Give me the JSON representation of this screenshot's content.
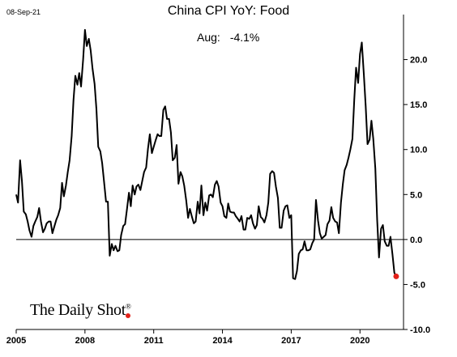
{
  "header": {
    "date": "08-Sep-21"
  },
  "chart_data": {
    "type": "line",
    "title": "China CPI YoY: Food",
    "annotation": {
      "label": "Aug:",
      "value": "-4.1%"
    },
    "xlabel": "",
    "ylabel": "",
    "ylim": [
      -10,
      25
    ],
    "xlim": [
      2005.0,
      2021.9
    ],
    "y_ticks": [
      20,
      15,
      10,
      5,
      0,
      -5,
      -10
    ],
    "y_tick_labels": [
      "20.0",
      "15.0",
      "10.0",
      "5.0",
      "0.0",
      "-5.0",
      "-10.0"
    ],
    "x_ticks": [
      2005,
      2008,
      2011,
      2014,
      2017,
      2020
    ],
    "x_tick_labels": [
      "2005",
      "2008",
      "2011",
      "2014",
      "2017",
      "2020"
    ],
    "zero_line": true,
    "grid": false,
    "line_color": "#000000",
    "marker_color": "#e32119",
    "last_point": {
      "x": 2021.58,
      "y": -4.1
    },
    "series": [
      {
        "values": [
          {
            "x": 2005.0,
            "y": 5.0
          },
          {
            "x": 2005.08,
            "y": 4.1
          },
          {
            "x": 2005.17,
            "y": 8.8
          },
          {
            "x": 2005.25,
            "y": 6.5
          },
          {
            "x": 2005.33,
            "y": 3.1
          },
          {
            "x": 2005.42,
            "y": 2.8
          },
          {
            "x": 2005.5,
            "y": 2.0
          },
          {
            "x": 2005.58,
            "y": 1.0
          },
          {
            "x": 2005.67,
            "y": 0.3
          },
          {
            "x": 2005.75,
            "y": 1.5
          },
          {
            "x": 2005.83,
            "y": 2.0
          },
          {
            "x": 2005.92,
            "y": 2.5
          },
          {
            "x": 2006.0,
            "y": 3.5
          },
          {
            "x": 2006.08,
            "y": 2.0
          },
          {
            "x": 2006.17,
            "y": 0.8
          },
          {
            "x": 2006.25,
            "y": 1.2
          },
          {
            "x": 2006.33,
            "y": 1.8
          },
          {
            "x": 2006.42,
            "y": 2.0
          },
          {
            "x": 2006.5,
            "y": 2.0
          },
          {
            "x": 2006.58,
            "y": 0.7
          },
          {
            "x": 2006.67,
            "y": 1.5
          },
          {
            "x": 2006.75,
            "y": 2.2
          },
          {
            "x": 2006.83,
            "y": 2.7
          },
          {
            "x": 2006.92,
            "y": 3.5
          },
          {
            "x": 2007.0,
            "y": 6.3
          },
          {
            "x": 2007.08,
            "y": 4.8
          },
          {
            "x": 2007.17,
            "y": 6.0
          },
          {
            "x": 2007.25,
            "y": 7.5
          },
          {
            "x": 2007.33,
            "y": 8.8
          },
          {
            "x": 2007.42,
            "y": 11.5
          },
          {
            "x": 2007.5,
            "y": 15.5
          },
          {
            "x": 2007.58,
            "y": 18.2
          },
          {
            "x": 2007.67,
            "y": 17.2
          },
          {
            "x": 2007.75,
            "y": 18.5
          },
          {
            "x": 2007.83,
            "y": 17.0
          },
          {
            "x": 2007.92,
            "y": 20.0
          },
          {
            "x": 2008.0,
            "y": 23.3
          },
          {
            "x": 2008.08,
            "y": 21.5
          },
          {
            "x": 2008.17,
            "y": 22.3
          },
          {
            "x": 2008.25,
            "y": 21.0
          },
          {
            "x": 2008.33,
            "y": 19.0
          },
          {
            "x": 2008.42,
            "y": 17.3
          },
          {
            "x": 2008.5,
            "y": 14.5
          },
          {
            "x": 2008.58,
            "y": 10.3
          },
          {
            "x": 2008.67,
            "y": 9.8
          },
          {
            "x": 2008.75,
            "y": 8.5
          },
          {
            "x": 2008.83,
            "y": 6.5
          },
          {
            "x": 2008.92,
            "y": 4.2
          },
          {
            "x": 2009.0,
            "y": 4.2
          },
          {
            "x": 2009.08,
            "y": -1.8
          },
          {
            "x": 2009.17,
            "y": -0.5
          },
          {
            "x": 2009.25,
            "y": -1.2
          },
          {
            "x": 2009.33,
            "y": -0.7
          },
          {
            "x": 2009.42,
            "y": -1.3
          },
          {
            "x": 2009.5,
            "y": -1.2
          },
          {
            "x": 2009.58,
            "y": 0.5
          },
          {
            "x": 2009.67,
            "y": 1.5
          },
          {
            "x": 2009.75,
            "y": 1.7
          },
          {
            "x": 2009.83,
            "y": 3.3
          },
          {
            "x": 2009.92,
            "y": 5.2
          },
          {
            "x": 2010.0,
            "y": 3.7
          },
          {
            "x": 2010.08,
            "y": 6.0
          },
          {
            "x": 2010.17,
            "y": 5.0
          },
          {
            "x": 2010.25,
            "y": 5.9
          },
          {
            "x": 2010.33,
            "y": 6.1
          },
          {
            "x": 2010.42,
            "y": 5.5
          },
          {
            "x": 2010.5,
            "y": 6.5
          },
          {
            "x": 2010.58,
            "y": 7.5
          },
          {
            "x": 2010.67,
            "y": 8.0
          },
          {
            "x": 2010.75,
            "y": 10.1
          },
          {
            "x": 2010.83,
            "y": 11.7
          },
          {
            "x": 2010.92,
            "y": 9.6
          },
          {
            "x": 2011.0,
            "y": 10.3
          },
          {
            "x": 2011.08,
            "y": 11.0
          },
          {
            "x": 2011.17,
            "y": 11.7
          },
          {
            "x": 2011.25,
            "y": 11.5
          },
          {
            "x": 2011.33,
            "y": 11.5
          },
          {
            "x": 2011.42,
            "y": 14.4
          },
          {
            "x": 2011.5,
            "y": 14.8
          },
          {
            "x": 2011.58,
            "y": 13.4
          },
          {
            "x": 2011.67,
            "y": 13.4
          },
          {
            "x": 2011.75,
            "y": 11.9
          },
          {
            "x": 2011.83,
            "y": 8.8
          },
          {
            "x": 2011.92,
            "y": 9.1
          },
          {
            "x": 2012.0,
            "y": 10.5
          },
          {
            "x": 2012.08,
            "y": 6.2
          },
          {
            "x": 2012.17,
            "y": 7.5
          },
          {
            "x": 2012.25,
            "y": 7.0
          },
          {
            "x": 2012.33,
            "y": 6.0
          },
          {
            "x": 2012.42,
            "y": 4.3
          },
          {
            "x": 2012.5,
            "y": 2.4
          },
          {
            "x": 2012.58,
            "y": 3.4
          },
          {
            "x": 2012.67,
            "y": 2.5
          },
          {
            "x": 2012.75,
            "y": 1.8
          },
          {
            "x": 2012.83,
            "y": 2.0
          },
          {
            "x": 2012.92,
            "y": 4.2
          },
          {
            "x": 2013.0,
            "y": 2.9
          },
          {
            "x": 2013.08,
            "y": 6.0
          },
          {
            "x": 2013.17,
            "y": 2.7
          },
          {
            "x": 2013.25,
            "y": 4.1
          },
          {
            "x": 2013.33,
            "y": 3.2
          },
          {
            "x": 2013.42,
            "y": 4.9
          },
          {
            "x": 2013.5,
            "y": 5.0
          },
          {
            "x": 2013.58,
            "y": 4.7
          },
          {
            "x": 2013.67,
            "y": 6.1
          },
          {
            "x": 2013.75,
            "y": 6.5
          },
          {
            "x": 2013.83,
            "y": 5.9
          },
          {
            "x": 2013.92,
            "y": 4.1
          },
          {
            "x": 2014.0,
            "y": 3.7
          },
          {
            "x": 2014.08,
            "y": 2.6
          },
          {
            "x": 2014.17,
            "y": 2.4
          },
          {
            "x": 2014.25,
            "y": 4.0
          },
          {
            "x": 2014.33,
            "y": 3.1
          },
          {
            "x": 2014.42,
            "y": 3.0
          },
          {
            "x": 2014.5,
            "y": 3.0
          },
          {
            "x": 2014.58,
            "y": 2.6
          },
          {
            "x": 2014.67,
            "y": 2.3
          },
          {
            "x": 2014.75,
            "y": 2.0
          },
          {
            "x": 2014.83,
            "y": 2.6
          },
          {
            "x": 2014.92,
            "y": 1.1
          },
          {
            "x": 2015.0,
            "y": 1.1
          },
          {
            "x": 2015.08,
            "y": 2.4
          },
          {
            "x": 2015.17,
            "y": 2.3
          },
          {
            "x": 2015.25,
            "y": 2.7
          },
          {
            "x": 2015.33,
            "y": 1.8
          },
          {
            "x": 2015.42,
            "y": 1.2
          },
          {
            "x": 2015.5,
            "y": 1.6
          },
          {
            "x": 2015.58,
            "y": 3.7
          },
          {
            "x": 2015.67,
            "y": 2.5
          },
          {
            "x": 2015.75,
            "y": 2.3
          },
          {
            "x": 2015.83,
            "y": 1.9
          },
          {
            "x": 2015.92,
            "y": 2.7
          },
          {
            "x": 2016.0,
            "y": 4.1
          },
          {
            "x": 2016.08,
            "y": 7.3
          },
          {
            "x": 2016.17,
            "y": 7.6
          },
          {
            "x": 2016.25,
            "y": 7.4
          },
          {
            "x": 2016.33,
            "y": 5.9
          },
          {
            "x": 2016.42,
            "y": 4.6
          },
          {
            "x": 2016.5,
            "y": 1.3
          },
          {
            "x": 2016.58,
            "y": 1.3
          },
          {
            "x": 2016.67,
            "y": 3.2
          },
          {
            "x": 2016.75,
            "y": 3.7
          },
          {
            "x": 2016.83,
            "y": 3.8
          },
          {
            "x": 2016.92,
            "y": 2.4
          },
          {
            "x": 2017.0,
            "y": 2.7
          },
          {
            "x": 2017.08,
            "y": -4.3
          },
          {
            "x": 2017.17,
            "y": -4.4
          },
          {
            "x": 2017.25,
            "y": -3.5
          },
          {
            "x": 2017.33,
            "y": -1.6
          },
          {
            "x": 2017.42,
            "y": -1.2
          },
          {
            "x": 2017.5,
            "y": -1.1
          },
          {
            "x": 2017.58,
            "y": -0.2
          },
          {
            "x": 2017.67,
            "y": -1.2
          },
          {
            "x": 2017.75,
            "y": -1.2
          },
          {
            "x": 2017.83,
            "y": -1.1
          },
          {
            "x": 2017.92,
            "y": -0.4
          },
          {
            "x": 2018.0,
            "y": 0.0
          },
          {
            "x": 2018.08,
            "y": 4.4
          },
          {
            "x": 2018.17,
            "y": 2.1
          },
          {
            "x": 2018.25,
            "y": 0.7
          },
          {
            "x": 2018.33,
            "y": 0.1
          },
          {
            "x": 2018.42,
            "y": 0.3
          },
          {
            "x": 2018.5,
            "y": 0.5
          },
          {
            "x": 2018.58,
            "y": 1.7
          },
          {
            "x": 2018.67,
            "y": 2.1
          },
          {
            "x": 2018.75,
            "y": 3.6
          },
          {
            "x": 2018.83,
            "y": 2.4
          },
          {
            "x": 2018.92,
            "y": 2.0
          },
          {
            "x": 2019.0,
            "y": 1.9
          },
          {
            "x": 2019.08,
            "y": 0.7
          },
          {
            "x": 2019.17,
            "y": 4.1
          },
          {
            "x": 2019.25,
            "y": 6.1
          },
          {
            "x": 2019.33,
            "y": 7.7
          },
          {
            "x": 2019.42,
            "y": 8.3
          },
          {
            "x": 2019.5,
            "y": 9.1
          },
          {
            "x": 2019.58,
            "y": 10.0
          },
          {
            "x": 2019.67,
            "y": 11.2
          },
          {
            "x": 2019.75,
            "y": 15.5
          },
          {
            "x": 2019.83,
            "y": 19.1
          },
          {
            "x": 2019.92,
            "y": 17.4
          },
          {
            "x": 2020.0,
            "y": 20.6
          },
          {
            "x": 2020.08,
            "y": 21.9
          },
          {
            "x": 2020.17,
            "y": 18.3
          },
          {
            "x": 2020.25,
            "y": 14.8
          },
          {
            "x": 2020.33,
            "y": 10.6
          },
          {
            "x": 2020.42,
            "y": 11.1
          },
          {
            "x": 2020.5,
            "y": 13.2
          },
          {
            "x": 2020.58,
            "y": 11.2
          },
          {
            "x": 2020.67,
            "y": 7.9
          },
          {
            "x": 2020.75,
            "y": 2.2
          },
          {
            "x": 2020.83,
            "y": -2.0
          },
          {
            "x": 2020.92,
            "y": 1.2
          },
          {
            "x": 2021.0,
            "y": 1.6
          },
          {
            "x": 2021.08,
            "y": -0.2
          },
          {
            "x": 2021.17,
            "y": -0.7
          },
          {
            "x": 2021.25,
            "y": -0.7
          },
          {
            "x": 2021.33,
            "y": 0.3
          },
          {
            "x": 2021.42,
            "y": -1.7
          },
          {
            "x": 2021.5,
            "y": -3.7
          },
          {
            "x": 2021.58,
            "y": -4.1
          }
        ]
      }
    ]
  },
  "branding": {
    "logo_text": "The Daily Shot",
    "logo_mark": "®"
  }
}
